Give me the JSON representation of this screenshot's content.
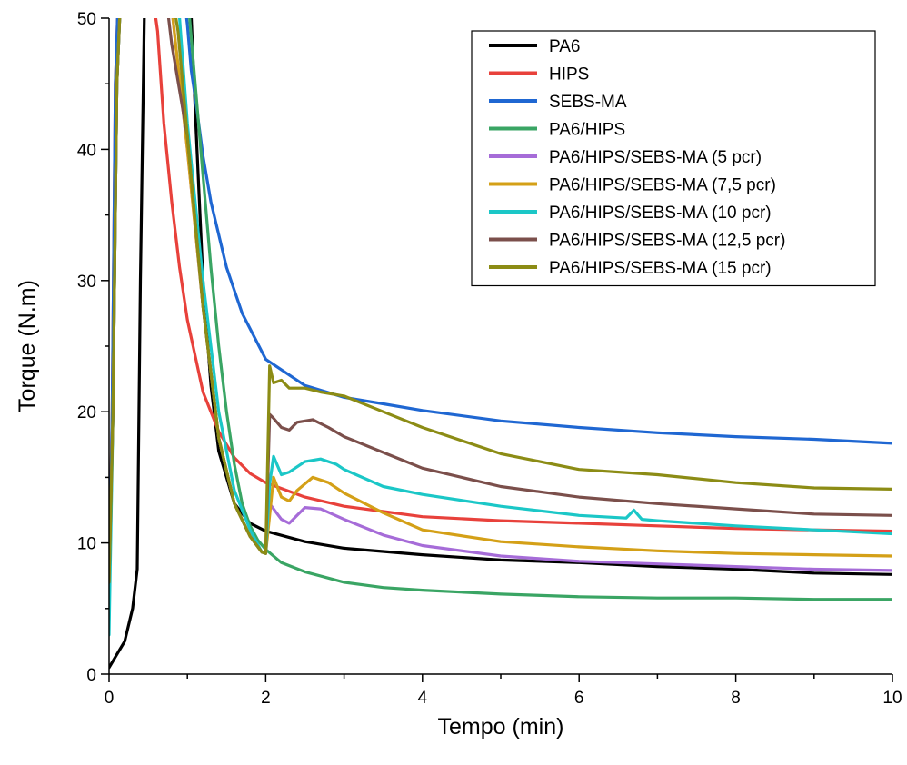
{
  "chart_data": {
    "type": "line",
    "title": "",
    "xlabel": "Tempo (min)",
    "ylabel": "Torque (N.m)",
    "xlim": [
      0,
      10
    ],
    "ylim": [
      0,
      50
    ],
    "xticks": [
      0,
      2,
      4,
      6,
      8,
      10
    ],
    "yticks": [
      0,
      10,
      20,
      30,
      40,
      50
    ],
    "grid": false,
    "legend_position": "top-right",
    "series": [
      {
        "name": "PA6",
        "color": "#000000",
        "x": [
          0,
          0.1,
          0.2,
          0.3,
          0.36,
          0.4,
          0.45,
          0.5,
          1.0,
          1.05,
          1.1,
          1.2,
          1.3,
          1.4,
          1.6,
          1.8,
          2.0,
          2.5,
          3.0,
          4.0,
          5.0,
          6.0,
          7.0,
          8.0,
          9.0,
          10.0
        ],
        "y": [
          0.5,
          1.5,
          2.5,
          5,
          8,
          30,
          50,
          52,
          52,
          50,
          43,
          30,
          22,
          17,
          13,
          11.5,
          10.9,
          10.1,
          9.6,
          9.1,
          8.7,
          8.5,
          8.2,
          8.0,
          7.7,
          7.6
        ]
      },
      {
        "name": "HIPS",
        "color": "#e8413b",
        "x": [
          0,
          0.04,
          0.08,
          0.12,
          0.3,
          0.55,
          0.62,
          0.7,
          0.8,
          0.9,
          1.0,
          1.2,
          1.4,
          1.6,
          1.8,
          2.0,
          2.5,
          3.0,
          4.0,
          5.0,
          6.0,
          7.0,
          8.0,
          9.0,
          10.0
        ],
        "y": [
          7,
          20,
          45,
          52,
          52,
          52,
          49,
          42,
          36,
          31,
          27,
          21.5,
          18.5,
          16.5,
          15.3,
          14.6,
          13.5,
          12.8,
          12.0,
          11.7,
          11.5,
          11.3,
          11.1,
          11.0,
          10.9
        ]
      },
      {
        "name": "SEBS-MA",
        "color": "#1f67d2",
        "x": [
          0,
          0.04,
          0.08,
          0.12,
          0.5,
          0.95,
          1.0,
          1.05,
          1.1,
          1.2,
          1.3,
          1.5,
          1.7,
          2.0,
          2.5,
          3.0,
          3.5,
          4.0,
          5.0,
          6.0,
          7.0,
          8.0,
          9.0,
          10.0
        ],
        "y": [
          6,
          20,
          45,
          52,
          52,
          52,
          49.5,
          46,
          44,
          39.5,
          36,
          31,
          27.5,
          24,
          22,
          21.1,
          20.6,
          20.1,
          19.3,
          18.8,
          18.4,
          18.1,
          17.9,
          17.6
        ]
      },
      {
        "name": "PA6/HIPS",
        "color": "#3aa564",
        "x": [
          0,
          0.05,
          0.1,
          0.15,
          0.5,
          1.0,
          1.1,
          1.2,
          1.3,
          1.4,
          1.5,
          1.6,
          1.7,
          1.8,
          1.9,
          2.0,
          2.2,
          2.5,
          3.0,
          3.5,
          4.0,
          5.0,
          6.0,
          7.0,
          8.0,
          9.0,
          10.0
        ],
        "y": [
          6,
          20,
          45,
          52,
          52,
          52,
          45,
          38,
          31,
          25,
          20,
          16,
          13,
          11.3,
          10.2,
          9.5,
          8.5,
          7.8,
          7.0,
          6.6,
          6.4,
          6.1,
          5.9,
          5.8,
          5.8,
          5.7,
          5.7
        ]
      },
      {
        "name": "PA6/HIPS/SEBS-MA (5 pcr)",
        "color": "#a66cd8",
        "x": [
          0,
          0.05,
          0.1,
          0.15,
          0.5,
          0.78,
          0.85,
          1.0,
          1.2,
          1.4,
          1.6,
          1.8,
          1.95,
          2.0,
          2.05,
          2.1,
          2.2,
          2.3,
          2.5,
          2.7,
          3.0,
          3.5,
          4.0,
          5.0,
          6.0,
          7.0,
          8.0,
          9.0,
          10.0
        ],
        "y": [
          6,
          20,
          45,
          52,
          52,
          52,
          48,
          40,
          28,
          18,
          13,
          10.5,
          9.3,
          9.2,
          13,
          12.6,
          11.8,
          11.5,
          12.7,
          12.6,
          11.8,
          10.6,
          9.8,
          9.0,
          8.6,
          8.4,
          8.2,
          8.0,
          7.9
        ]
      },
      {
        "name": "PA6/HIPS/SEBS-MA (7,5 pcr)",
        "color": "#d4a017",
        "x": [
          0,
          0.05,
          0.1,
          0.15,
          0.5,
          0.78,
          0.85,
          1.0,
          1.2,
          1.4,
          1.6,
          1.8,
          1.95,
          2.0,
          2.1,
          2.2,
          2.3,
          2.4,
          2.6,
          2.8,
          3.0,
          3.5,
          4.0,
          5.0,
          6.0,
          7.0,
          8.0,
          9.0,
          10.0
        ],
        "y": [
          6,
          20,
          45,
          52,
          52,
          52,
          48,
          40,
          28,
          18,
          13,
          10.5,
          9.3,
          9.2,
          15,
          13.5,
          13.2,
          14.0,
          15.0,
          14.6,
          13.8,
          12.3,
          11.0,
          10.1,
          9.7,
          9.4,
          9.2,
          9.1,
          9.0
        ]
      },
      {
        "name": "PA6/HIPS/SEBS-MA (10 pcr)",
        "color": "#1bc7c7",
        "x": [
          0,
          0.05,
          0.1,
          0.15,
          0.5,
          0.85,
          0.9,
          1.0,
          1.2,
          1.4,
          1.6,
          1.8,
          1.95,
          2.0,
          2.05,
          2.1,
          2.2,
          2.3,
          2.5,
          2.7,
          2.9,
          3.0,
          3.5,
          4.0,
          5.0,
          6.0,
          6.6,
          6.7,
          6.8,
          7.0,
          8.0,
          9.0,
          10.0
        ],
        "y": [
          3,
          20,
          45,
          52,
          52,
          52,
          50,
          42,
          30,
          20,
          14,
          11,
          9.3,
          9.2,
          14.5,
          16.6,
          15.2,
          15.4,
          16.2,
          16.4,
          16.0,
          15.6,
          14.3,
          13.7,
          12.8,
          12.1,
          11.9,
          12.5,
          11.8,
          11.7,
          11.3,
          11.0,
          10.7
        ]
      },
      {
        "name": "PA6/HIPS/SEBS-MA (12,5 pcr)",
        "color": "#7b4f4b",
        "x": [
          0,
          0.05,
          0.1,
          0.15,
          0.5,
          0.72,
          0.8,
          1.0,
          1.2,
          1.4,
          1.6,
          1.8,
          1.95,
          2.0,
          2.05,
          2.1,
          2.2,
          2.3,
          2.4,
          2.6,
          2.8,
          3.0,
          3.5,
          4.0,
          5.0,
          6.0,
          7.0,
          8.0,
          9.0,
          10.0
        ],
        "y": [
          7,
          20,
          45,
          52,
          52,
          52,
          48,
          41,
          28,
          18,
          13,
          10.5,
          9.3,
          9.2,
          19.8,
          19.5,
          18.8,
          18.6,
          19.2,
          19.4,
          18.8,
          18.1,
          16.9,
          15.7,
          14.3,
          13.5,
          13.0,
          12.6,
          12.2,
          12.1
        ]
      },
      {
        "name": "PA6/HIPS/SEBS-MA (15 pcr)",
        "color": "#8c8c15",
        "x": [
          0,
          0.05,
          0.1,
          0.15,
          0.5,
          0.8,
          0.88,
          1.0,
          1.2,
          1.4,
          1.6,
          1.8,
          1.95,
          2.0,
          2.05,
          2.1,
          2.2,
          2.3,
          2.5,
          2.7,
          3.0,
          3.5,
          4.0,
          5.0,
          6.0,
          7.0,
          8.0,
          9.0,
          10.0
        ],
        "y": [
          7,
          20,
          45,
          52,
          52,
          52,
          49,
          41,
          28,
          18,
          13,
          10.5,
          9.3,
          9.2,
          23.5,
          22.2,
          22.4,
          21.8,
          21.8,
          21.5,
          21.2,
          20.0,
          18.8,
          16.8,
          15.6,
          15.2,
          14.6,
          14.2,
          14.1
        ]
      }
    ]
  }
}
